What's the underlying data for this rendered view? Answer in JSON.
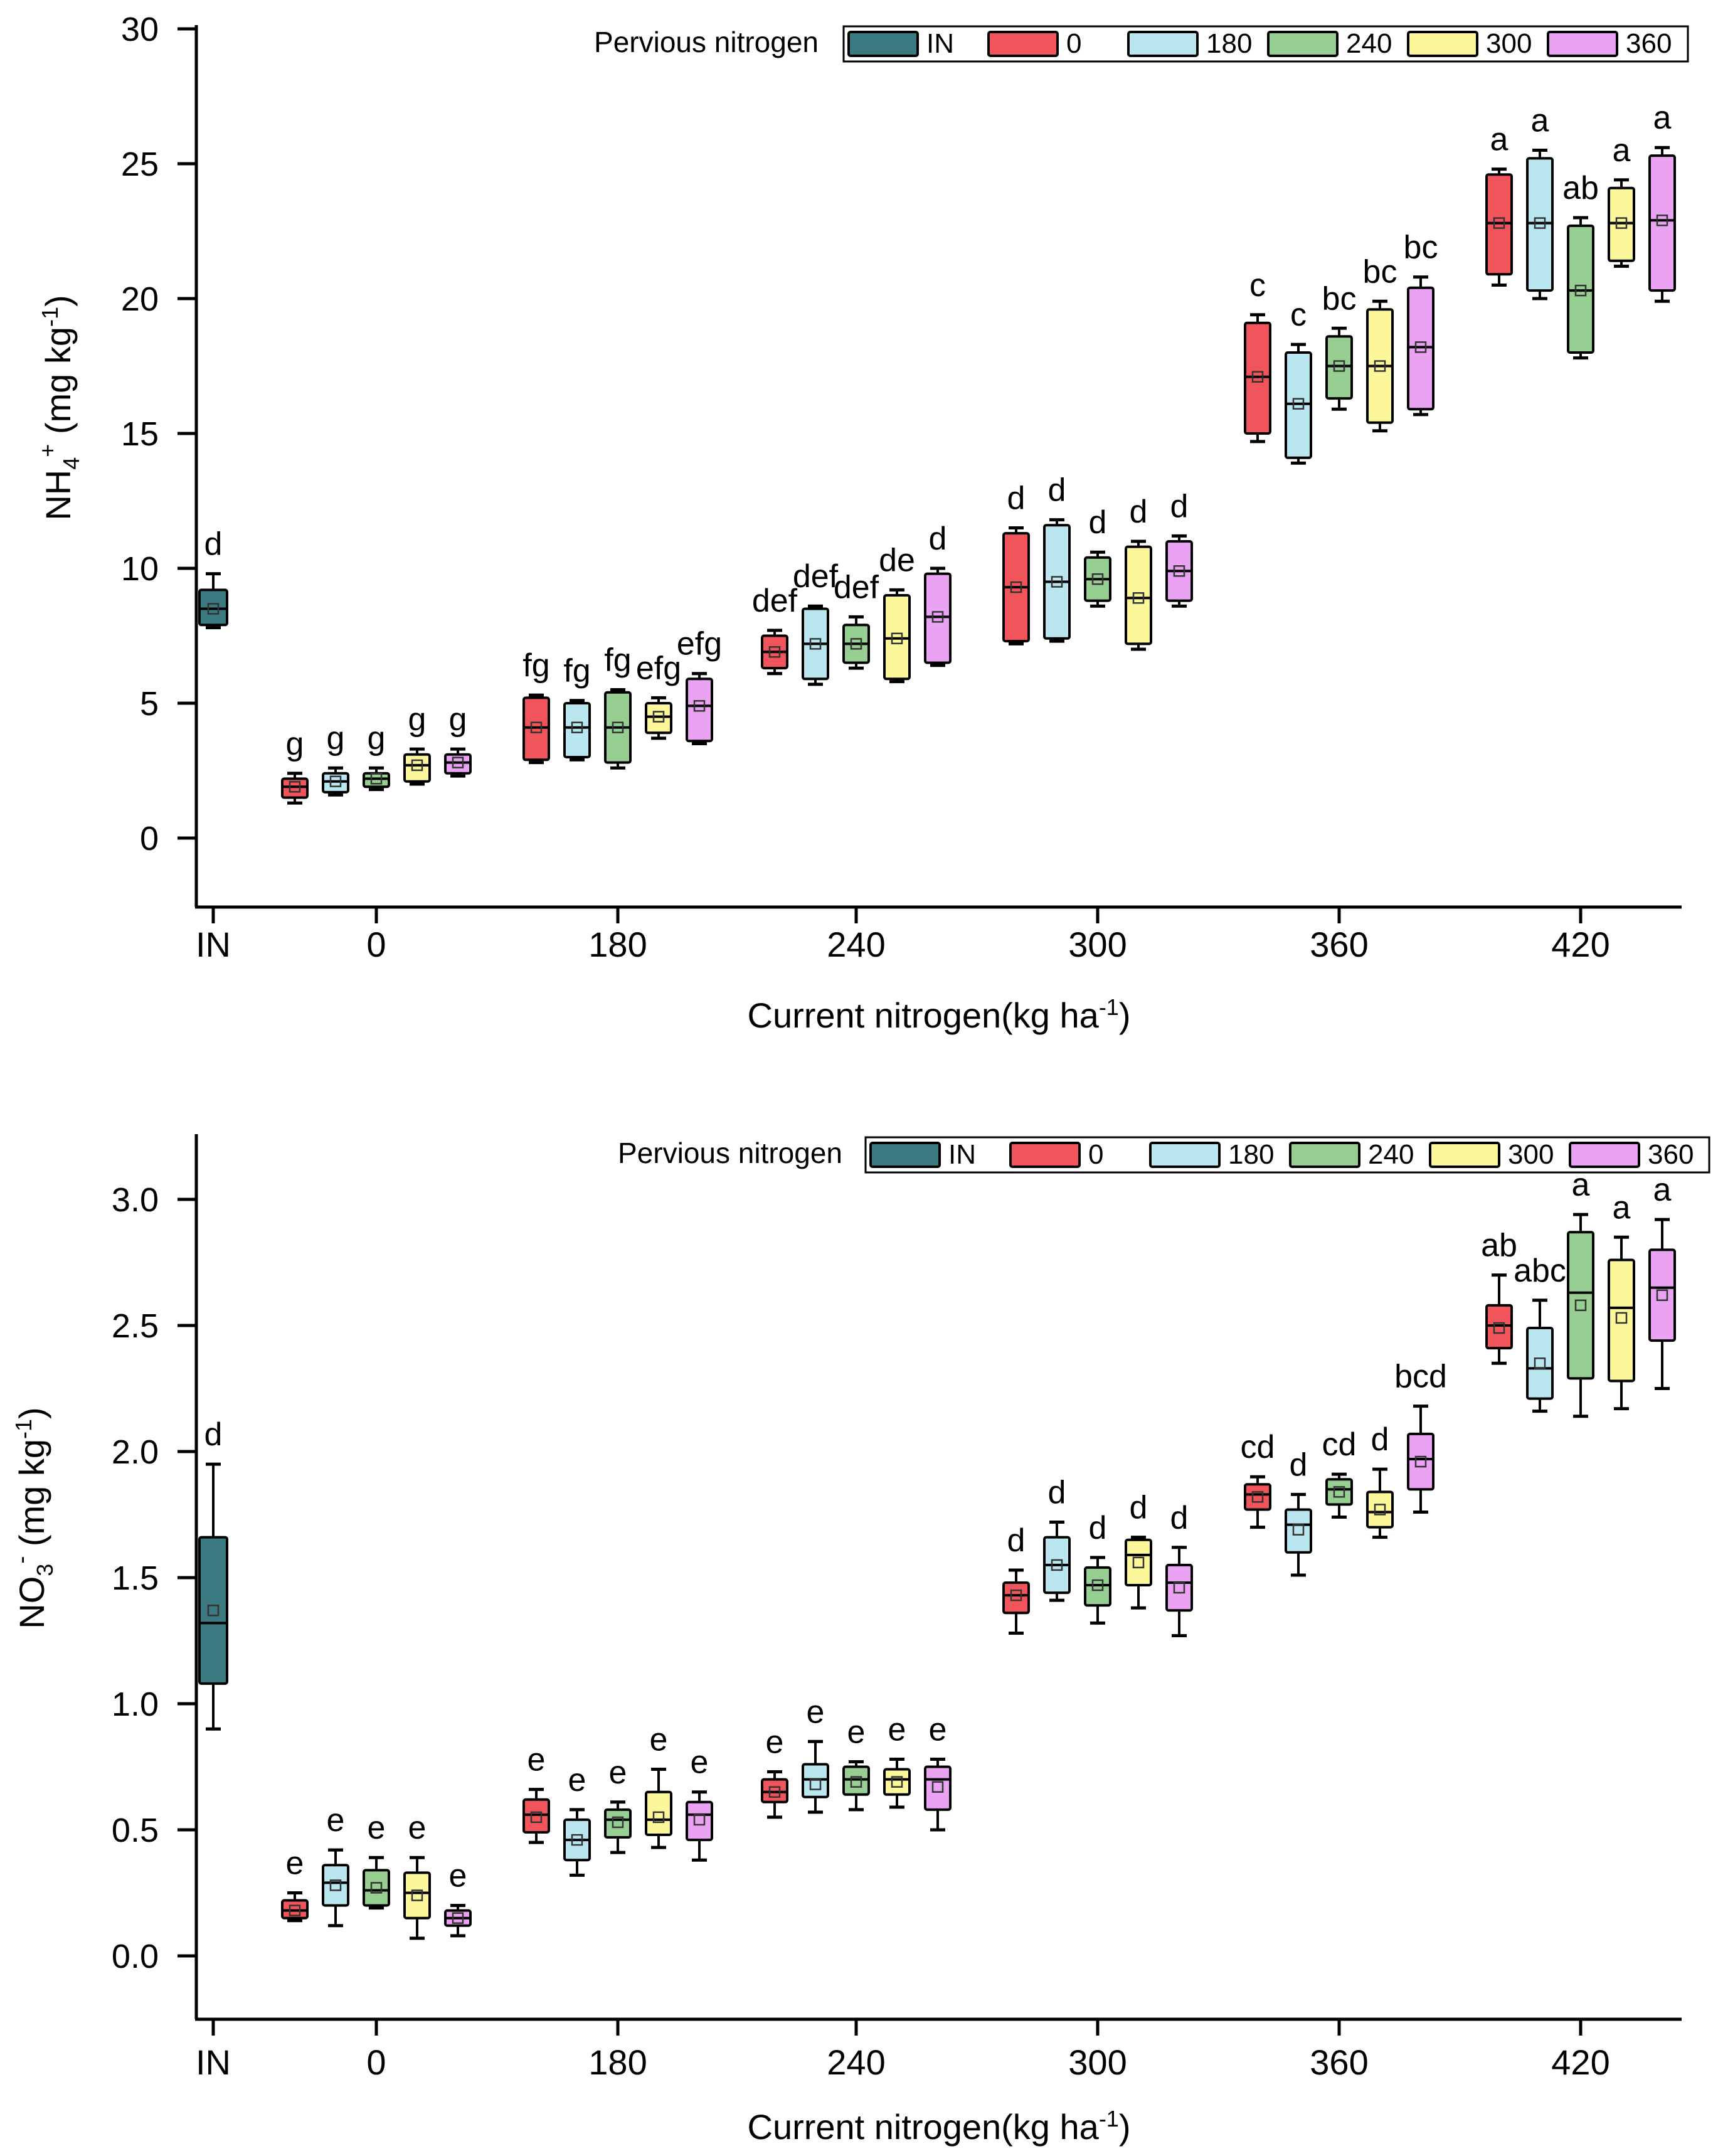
{
  "legend": {
    "title": "Pervious nitrogen",
    "entries": [
      "IN",
      "0",
      "180",
      "240",
      "300",
      "360"
    ],
    "colors": [
      "#3b7a80",
      "#f2545b",
      "#b9e6ef",
      "#97cf93",
      "#fbf79a",
      "#eaa2f2"
    ]
  },
  "chart_data": [
    {
      "type": "box",
      "title": "",
      "xlabel": "Current nitrogen(kg ha-1)",
      "xlabel_main": "Current nitrogen(kg ha",
      "xlabel_sup": "-1",
      "xlabel_end": ")",
      "ylabel": "NH4+ (mg kg-1)",
      "ylabel_parts": [
        "NH",
        "4",
        "+",
        " (mg kg",
        "-1",
        ")"
      ],
      "ylim": [
        -2.5,
        30
      ],
      "yticks": [
        "0",
        "5",
        "10",
        "15",
        "20",
        "25",
        "30"
      ],
      "categories": [
        "IN",
        "0",
        "180",
        "240",
        "300",
        "360",
        "420"
      ],
      "groups": [
        {
          "category": "IN",
          "boxes": [
            {
              "series": "IN",
              "min": 7.8,
              "q1": 7.9,
              "median": 8.5,
              "mean": 8.5,
              "q3": 9.2,
              "max": 9.8,
              "label": "d"
            }
          ]
        },
        {
          "category": "0",
          "boxes": [
            {
              "series": "0",
              "min": 1.3,
              "q1": 1.5,
              "median": 1.9,
              "mean": 1.9,
              "q3": 2.2,
              "max": 2.4,
              "label": "g"
            },
            {
              "series": "180",
              "min": 1.6,
              "q1": 1.7,
              "median": 2.1,
              "mean": 2.1,
              "q3": 2.4,
              "max": 2.6,
              "label": "g"
            },
            {
              "series": "240",
              "min": 1.8,
              "q1": 1.9,
              "median": 2.2,
              "mean": 2.2,
              "q3": 2.4,
              "max": 2.6,
              "label": "g"
            },
            {
              "series": "300",
              "min": 2.0,
              "q1": 2.1,
              "median": 2.7,
              "mean": 2.7,
              "q3": 3.1,
              "max": 3.3,
              "label": "g"
            },
            {
              "series": "360",
              "min": 2.3,
              "q1": 2.4,
              "median": 2.8,
              "mean": 2.8,
              "q3": 3.1,
              "max": 3.3,
              "label": "g"
            }
          ]
        },
        {
          "category": "180",
          "boxes": [
            {
              "series": "0",
              "min": 2.8,
              "q1": 2.9,
              "median": 4.1,
              "mean": 4.1,
              "q3": 5.2,
              "max": 5.3,
              "label": "fg"
            },
            {
              "series": "180",
              "min": 2.9,
              "q1": 3.0,
              "median": 4.1,
              "mean": 4.1,
              "q3": 5.0,
              "max": 5.1,
              "label": "fg"
            },
            {
              "series": "240",
              "min": 2.6,
              "q1": 2.8,
              "median": 4.1,
              "mean": 4.1,
              "q3": 5.4,
              "max": 5.5,
              "label": "fg"
            },
            {
              "series": "300",
              "min": 3.7,
              "q1": 3.9,
              "median": 4.5,
              "mean": 4.5,
              "q3": 5.0,
              "max": 5.2,
              "label": "efg"
            },
            {
              "series": "360",
              "min": 3.5,
              "q1": 3.6,
              "median": 4.9,
              "mean": 4.9,
              "q3": 5.9,
              "max": 6.1,
              "label": "efg"
            }
          ]
        },
        {
          "category": "240",
          "boxes": [
            {
              "series": "0",
              "min": 6.1,
              "q1": 6.3,
              "median": 6.9,
              "mean": 6.9,
              "q3": 7.5,
              "max": 7.7,
              "label": "def"
            },
            {
              "series": "180",
              "min": 5.7,
              "q1": 5.9,
              "median": 7.2,
              "mean": 7.2,
              "q3": 8.5,
              "max": 8.6,
              "label": "def"
            },
            {
              "series": "240",
              "min": 6.3,
              "q1": 6.5,
              "median": 7.2,
              "mean": 7.2,
              "q3": 7.9,
              "max": 8.2,
              "label": "def"
            },
            {
              "series": "300",
              "min": 5.8,
              "q1": 5.9,
              "median": 7.4,
              "mean": 7.4,
              "q3": 9.0,
              "max": 9.2,
              "label": "de"
            },
            {
              "series": "360",
              "min": 6.4,
              "q1": 6.5,
              "median": 8.2,
              "mean": 8.2,
              "q3": 9.8,
              "max": 10.0,
              "label": "d"
            }
          ]
        },
        {
          "category": "300",
          "boxes": [
            {
              "series": "0",
              "min": 7.2,
              "q1": 7.3,
              "median": 9.3,
              "mean": 9.3,
              "q3": 11.3,
              "max": 11.5,
              "label": "d"
            },
            {
              "series": "180",
              "min": 7.3,
              "q1": 7.4,
              "median": 9.5,
              "mean": 9.5,
              "q3": 11.6,
              "max": 11.8,
              "label": "d"
            },
            {
              "series": "240",
              "min": 8.6,
              "q1": 8.8,
              "median": 9.6,
              "mean": 9.6,
              "q3": 10.4,
              "max": 10.6,
              "label": "d"
            },
            {
              "series": "300",
              "min": 7.0,
              "q1": 7.2,
              "median": 8.9,
              "mean": 8.9,
              "q3": 10.8,
              "max": 11.0,
              "label": "d"
            },
            {
              "series": "360",
              "min": 8.6,
              "q1": 8.8,
              "median": 9.9,
              "mean": 9.9,
              "q3": 11.0,
              "max": 11.2,
              "label": "d"
            }
          ]
        },
        {
          "category": "360",
          "boxes": [
            {
              "series": "0",
              "min": 14.7,
              "q1": 15.0,
              "median": 17.1,
              "mean": 17.1,
              "q3": 19.1,
              "max": 19.4,
              "label": "c"
            },
            {
              "series": "180",
              "min": 13.9,
              "q1": 14.1,
              "median": 16.1,
              "mean": 16.1,
              "q3": 18.0,
              "max": 18.3,
              "label": "c"
            },
            {
              "series": "240",
              "min": 15.9,
              "q1": 16.3,
              "median": 17.5,
              "mean": 17.5,
              "q3": 18.6,
              "max": 18.9,
              "label": "bc"
            },
            {
              "series": "300",
              "min": 15.1,
              "q1": 15.4,
              "median": 17.5,
              "mean": 17.5,
              "q3": 19.6,
              "max": 19.9,
              "label": "bc"
            },
            {
              "series": "360",
              "min": 15.7,
              "q1": 15.9,
              "median": 18.2,
              "mean": 18.2,
              "q3": 20.4,
              "max": 20.8,
              "label": "bc"
            }
          ]
        },
        {
          "category": "420",
          "boxes": [
            {
              "series": "0",
              "min": 20.5,
              "q1": 20.9,
              "median": 22.8,
              "mean": 22.8,
              "q3": 24.6,
              "max": 24.8,
              "label": "a"
            },
            {
              "series": "180",
              "min": 20.0,
              "q1": 20.3,
              "median": 22.8,
              "mean": 22.8,
              "q3": 25.2,
              "max": 25.5,
              "label": "a"
            },
            {
              "series": "240",
              "min": 17.8,
              "q1": 18.0,
              "median": 20.3,
              "mean": 20.3,
              "q3": 22.7,
              "max": 23.0,
              "label": "ab"
            },
            {
              "series": "300",
              "min": 21.2,
              "q1": 21.4,
              "median": 22.8,
              "mean": 22.8,
              "q3": 24.1,
              "max": 24.4,
              "label": "a"
            },
            {
              "series": "360",
              "min": 19.9,
              "q1": 20.3,
              "median": 22.9,
              "mean": 22.9,
              "q3": 25.3,
              "max": 25.6,
              "label": "a"
            }
          ]
        }
      ]
    },
    {
      "type": "box",
      "title": "",
      "xlabel": "Current nitrogen(kg ha-1)",
      "xlabel_main": "Current nitrogen(kg ha",
      "xlabel_sup": "-1",
      "xlabel_end": ")",
      "ylabel": "NO3- (mg kg-1)",
      "ylabel_parts": [
        "NO",
        "3",
        "-",
        " (mg kg",
        "-1",
        ")"
      ],
      "ylim": [
        -0.25,
        3.25
      ],
      "yticks": [
        "0.0",
        "0.5",
        "1.0",
        "1.5",
        "2.0",
        "2.5",
        "3.0"
      ],
      "categories": [
        "IN",
        "0",
        "180",
        "240",
        "300",
        "360",
        "420"
      ],
      "groups": [
        {
          "category": "IN",
          "boxes": [
            {
              "series": "IN",
              "min": 0.9,
              "q1": 1.08,
              "median": 1.32,
              "mean": 1.37,
              "q3": 1.66,
              "max": 1.95,
              "label": "d"
            }
          ]
        },
        {
          "category": "0",
          "boxes": [
            {
              "series": "0",
              "min": 0.14,
              "q1": 0.15,
              "median": 0.18,
              "mean": 0.18,
              "q3": 0.22,
              "max": 0.25,
              "label": "e"
            },
            {
              "series": "180",
              "min": 0.12,
              "q1": 0.2,
              "median": 0.29,
              "mean": 0.28,
              "q3": 0.36,
              "max": 0.42,
              "label": "e"
            },
            {
              "series": "240",
              "min": 0.19,
              "q1": 0.2,
              "median": 0.26,
              "mean": 0.27,
              "q3": 0.34,
              "max": 0.39,
              "label": "e"
            },
            {
              "series": "300",
              "min": 0.07,
              "q1": 0.15,
              "median": 0.25,
              "mean": 0.24,
              "q3": 0.33,
              "max": 0.39,
              "label": "e"
            },
            {
              "series": "360",
              "min": 0.08,
              "q1": 0.12,
              "median": 0.15,
              "mean": 0.15,
              "q3": 0.18,
              "max": 0.2,
              "label": "e"
            }
          ]
        },
        {
          "category": "180",
          "boxes": [
            {
              "series": "0",
              "min": 0.45,
              "q1": 0.49,
              "median": 0.56,
              "mean": 0.55,
              "q3": 0.62,
              "max": 0.66,
              "label": "e"
            },
            {
              "series": "180",
              "min": 0.32,
              "q1": 0.38,
              "median": 0.46,
              "mean": 0.46,
              "q3": 0.54,
              "max": 0.58,
              "label": "e"
            },
            {
              "series": "240",
              "min": 0.41,
              "q1": 0.47,
              "median": 0.54,
              "mean": 0.53,
              "q3": 0.58,
              "max": 0.61,
              "label": "e"
            },
            {
              "series": "300",
              "min": 0.43,
              "q1": 0.48,
              "median": 0.54,
              "mean": 0.55,
              "q3": 0.65,
              "max": 0.74,
              "label": "e"
            },
            {
              "series": "360",
              "min": 0.38,
              "q1": 0.46,
              "median": 0.56,
              "mean": 0.54,
              "q3": 0.61,
              "max": 0.65,
              "label": "e"
            }
          ]
        },
        {
          "category": "240",
          "boxes": [
            {
              "series": "0",
              "min": 0.55,
              "q1": 0.61,
              "median": 0.65,
              "mean": 0.65,
              "q3": 0.7,
              "max": 0.73,
              "label": "e"
            },
            {
              "series": "180",
              "min": 0.57,
              "q1": 0.63,
              "median": 0.7,
              "mean": 0.68,
              "q3": 0.76,
              "max": 0.85,
              "label": "e"
            },
            {
              "series": "240",
              "min": 0.58,
              "q1": 0.64,
              "median": 0.7,
              "mean": 0.69,
              "q3": 0.75,
              "max": 0.77,
              "label": "e"
            },
            {
              "series": "300",
              "min": 0.59,
              "q1": 0.64,
              "median": 0.7,
              "mean": 0.69,
              "q3": 0.74,
              "max": 0.78,
              "label": "e"
            },
            {
              "series": "360",
              "min": 0.5,
              "q1": 0.58,
              "median": 0.7,
              "mean": 0.67,
              "q3": 0.75,
              "max": 0.78,
              "label": "e"
            }
          ]
        },
        {
          "category": "300",
          "boxes": [
            {
              "series": "0",
              "min": 1.28,
              "q1": 1.36,
              "median": 1.43,
              "mean": 1.43,
              "q3": 1.48,
              "max": 1.53,
              "label": "d"
            },
            {
              "series": "180",
              "min": 1.41,
              "q1": 1.44,
              "median": 1.55,
              "mean": 1.55,
              "q3": 1.66,
              "max": 1.72,
              "label": "d"
            },
            {
              "series": "240",
              "min": 1.32,
              "q1": 1.39,
              "median": 1.47,
              "mean": 1.47,
              "q3": 1.54,
              "max": 1.58,
              "label": "d"
            },
            {
              "series": "300",
              "min": 1.38,
              "q1": 1.47,
              "median": 1.59,
              "mean": 1.56,
              "q3": 1.65,
              "max": 1.66,
              "label": "d"
            },
            {
              "series": "360",
              "min": 1.27,
              "q1": 1.37,
              "median": 1.48,
              "mean": 1.46,
              "q3": 1.55,
              "max": 1.62,
              "label": "d"
            }
          ]
        },
        {
          "category": "360",
          "boxes": [
            {
              "series": "0",
              "min": 1.7,
              "q1": 1.77,
              "median": 1.83,
              "mean": 1.82,
              "q3": 1.87,
              "max": 1.9,
              "label": "cd"
            },
            {
              "series": "180",
              "min": 1.51,
              "q1": 1.6,
              "median": 1.71,
              "mean": 1.69,
              "q3": 1.77,
              "max": 1.83,
              "label": "d"
            },
            {
              "series": "240",
              "min": 1.74,
              "q1": 1.79,
              "median": 1.85,
              "mean": 1.84,
              "q3": 1.89,
              "max": 1.91,
              "label": "cd"
            },
            {
              "series": "300",
              "min": 1.66,
              "q1": 1.7,
              "median": 1.76,
              "mean": 1.77,
              "q3": 1.84,
              "max": 1.93,
              "label": "d"
            },
            {
              "series": "360",
              "min": 1.76,
              "q1": 1.85,
              "median": 1.97,
              "mean": 1.96,
              "q3": 2.07,
              "max": 2.18,
              "label": "bcd"
            }
          ]
        },
        {
          "category": "420",
          "boxes": [
            {
              "series": "0",
              "min": 2.35,
              "q1": 2.41,
              "median": 2.5,
              "mean": 2.49,
              "q3": 2.58,
              "max": 2.7,
              "label": "ab"
            },
            {
              "series": "180",
              "min": 2.16,
              "q1": 2.21,
              "median": 2.33,
              "mean": 2.35,
              "q3": 2.49,
              "max": 2.6,
              "label": "abc"
            },
            {
              "series": "240",
              "min": 2.14,
              "q1": 2.29,
              "median": 2.63,
              "mean": 2.58,
              "q3": 2.87,
              "max": 2.94,
              "label": "a"
            },
            {
              "series": "300",
              "min": 2.17,
              "q1": 2.28,
              "median": 2.57,
              "mean": 2.53,
              "q3": 2.76,
              "max": 2.85,
              "label": "a"
            },
            {
              "series": "360",
              "min": 2.25,
              "q1": 2.44,
              "median": 2.65,
              "mean": 2.62,
              "q3": 2.8,
              "max": 2.92,
              "label": "a"
            }
          ]
        }
      ]
    }
  ]
}
